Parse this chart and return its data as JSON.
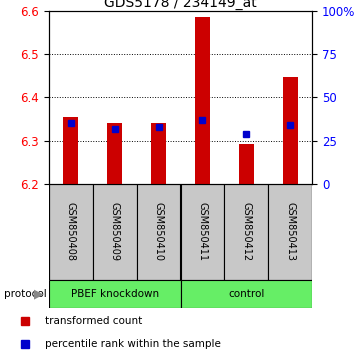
{
  "title": "GDS5178 / 234149_at",
  "samples": [
    "GSM850408",
    "GSM850409",
    "GSM850410",
    "GSM850411",
    "GSM850412",
    "GSM850413"
  ],
  "red_values": [
    6.355,
    6.34,
    6.342,
    6.585,
    6.293,
    6.448
  ],
  "blue_percentiles": [
    35,
    32,
    33,
    37,
    29,
    34
  ],
  "y_min": 6.2,
  "y_max": 6.6,
  "y_ticks": [
    6.2,
    6.3,
    6.4,
    6.5,
    6.6
  ],
  "right_y_ticks": [
    0,
    25,
    50,
    75,
    100
  ],
  "right_y_labels": [
    "0",
    "25",
    "50",
    "75",
    "100%"
  ],
  "bar_width": 0.35,
  "bar_color": "#CC0000",
  "blue_color": "#0000CC",
  "sample_bg": "#C8C8C8",
  "green_color": "#66EE66",
  "protocol_arrow_color": "#888888"
}
